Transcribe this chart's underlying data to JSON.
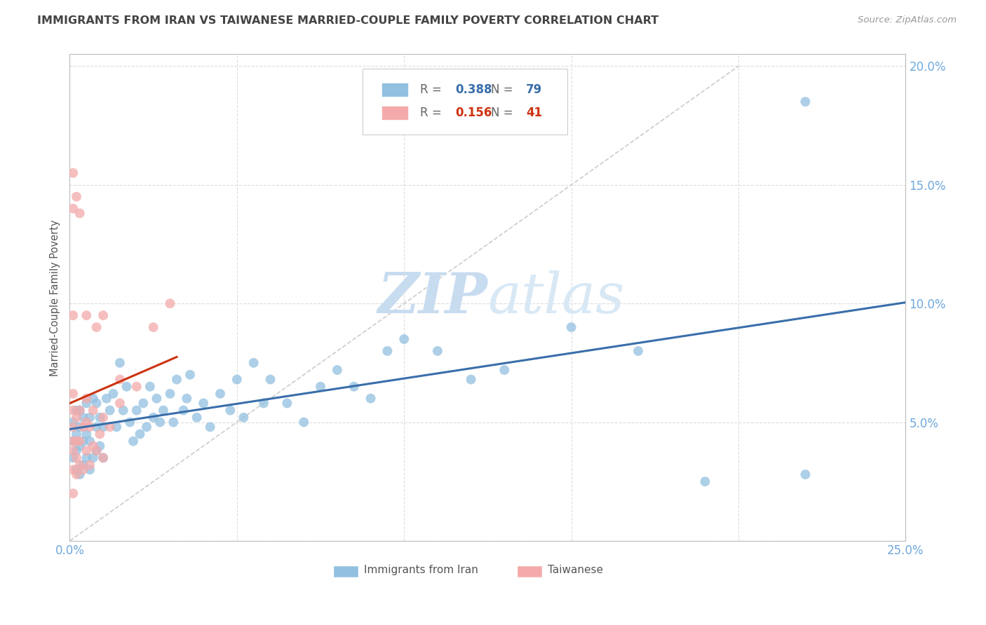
{
  "title": "IMMIGRANTS FROM IRAN VS TAIWANESE MARRIED-COUPLE FAMILY POVERTY CORRELATION CHART",
  "source": "Source: ZipAtlas.com",
  "ylabel": "Married-Couple Family Poverty",
  "xmin": 0.0,
  "xmax": 0.25,
  "ymin": 0.0,
  "ymax": 0.205,
  "x_ticks": [
    0.0,
    0.05,
    0.1,
    0.15,
    0.2,
    0.25
  ],
  "x_tick_labels": [
    "0.0%",
    "",
    "",
    "",
    "",
    "25.0%"
  ],
  "y_ticks": [
    0.0,
    0.05,
    0.1,
    0.15,
    0.2
  ],
  "y_tick_labels": [
    "",
    "5.0%",
    "10.0%",
    "15.0%",
    "20.0%"
  ],
  "blue_R": 0.388,
  "blue_N": 79,
  "pink_R": 0.156,
  "pink_N": 41,
  "blue_color": "#92C0E0",
  "pink_color": "#F4AAAA",
  "blue_line_color": "#3A6EAA",
  "pink_line_color": "#CC3311",
  "diagonal_color": "#CCCCCC",
  "grid_color": "#DDDDDD",
  "axis_color": "#BBBBBB",
  "tick_label_color": "#6FA8DC",
  "title_color": "#444444",
  "watermark_zip_color": "#C8DCF0",
  "watermark_atlas_color": "#D8E8F5",
  "blue_x": [
    0.001,
    0.001,
    0.001,
    0.002,
    0.002,
    0.002,
    0.002,
    0.003,
    0.003,
    0.003,
    0.003,
    0.004,
    0.004,
    0.004,
    0.005,
    0.005,
    0.005,
    0.006,
    0.006,
    0.006,
    0.007,
    0.007,
    0.008,
    0.008,
    0.008,
    0.009,
    0.009,
    0.01,
    0.01,
    0.011,
    0.012,
    0.013,
    0.014,
    0.015,
    0.016,
    0.017,
    0.018,
    0.019,
    0.02,
    0.021,
    0.022,
    0.023,
    0.024,
    0.025,
    0.026,
    0.027,
    0.028,
    0.03,
    0.031,
    0.032,
    0.034,
    0.035,
    0.036,
    0.038,
    0.04,
    0.042,
    0.045,
    0.048,
    0.05,
    0.052,
    0.055,
    0.058,
    0.06,
    0.065,
    0.07,
    0.075,
    0.08,
    0.085,
    0.09,
    0.095,
    0.1,
    0.11,
    0.12,
    0.13,
    0.15,
    0.17,
    0.19,
    0.22,
    0.22
  ],
  "blue_y": [
    0.035,
    0.042,
    0.05,
    0.03,
    0.038,
    0.045,
    0.055,
    0.028,
    0.04,
    0.048,
    0.055,
    0.032,
    0.042,
    0.052,
    0.035,
    0.045,
    0.058,
    0.03,
    0.042,
    0.052,
    0.035,
    0.06,
    0.038,
    0.048,
    0.058,
    0.04,
    0.052,
    0.035,
    0.048,
    0.06,
    0.055,
    0.062,
    0.048,
    0.075,
    0.055,
    0.065,
    0.05,
    0.042,
    0.055,
    0.045,
    0.058,
    0.048,
    0.065,
    0.052,
    0.06,
    0.05,
    0.055,
    0.062,
    0.05,
    0.068,
    0.055,
    0.06,
    0.07,
    0.052,
    0.058,
    0.048,
    0.062,
    0.055,
    0.068,
    0.052,
    0.075,
    0.058,
    0.068,
    0.058,
    0.05,
    0.065,
    0.072,
    0.065,
    0.06,
    0.08,
    0.085,
    0.08,
    0.068,
    0.072,
    0.09,
    0.08,
    0.025,
    0.185,
    0.028
  ],
  "pink_x": [
    0.001,
    0.001,
    0.001,
    0.001,
    0.001,
    0.001,
    0.001,
    0.002,
    0.002,
    0.002,
    0.002,
    0.003,
    0.003,
    0.003,
    0.004,
    0.004,
    0.005,
    0.005,
    0.005,
    0.006,
    0.006,
    0.007,
    0.007,
    0.008,
    0.009,
    0.01,
    0.01,
    0.012,
    0.015,
    0.015,
    0.02,
    0.025,
    0.03,
    0.001,
    0.001,
    0.001,
    0.002,
    0.003,
    0.005,
    0.008,
    0.01
  ],
  "pink_y": [
    0.03,
    0.038,
    0.042,
    0.048,
    0.055,
    0.062,
    0.02,
    0.028,
    0.035,
    0.042,
    0.052,
    0.032,
    0.042,
    0.055,
    0.03,
    0.048,
    0.038,
    0.05,
    0.06,
    0.032,
    0.048,
    0.04,
    0.055,
    0.038,
    0.045,
    0.035,
    0.052,
    0.048,
    0.058,
    0.068,
    0.065,
    0.09,
    0.1,
    0.095,
    0.14,
    0.155,
    0.145,
    0.138,
    0.095,
    0.09,
    0.095
  ]
}
